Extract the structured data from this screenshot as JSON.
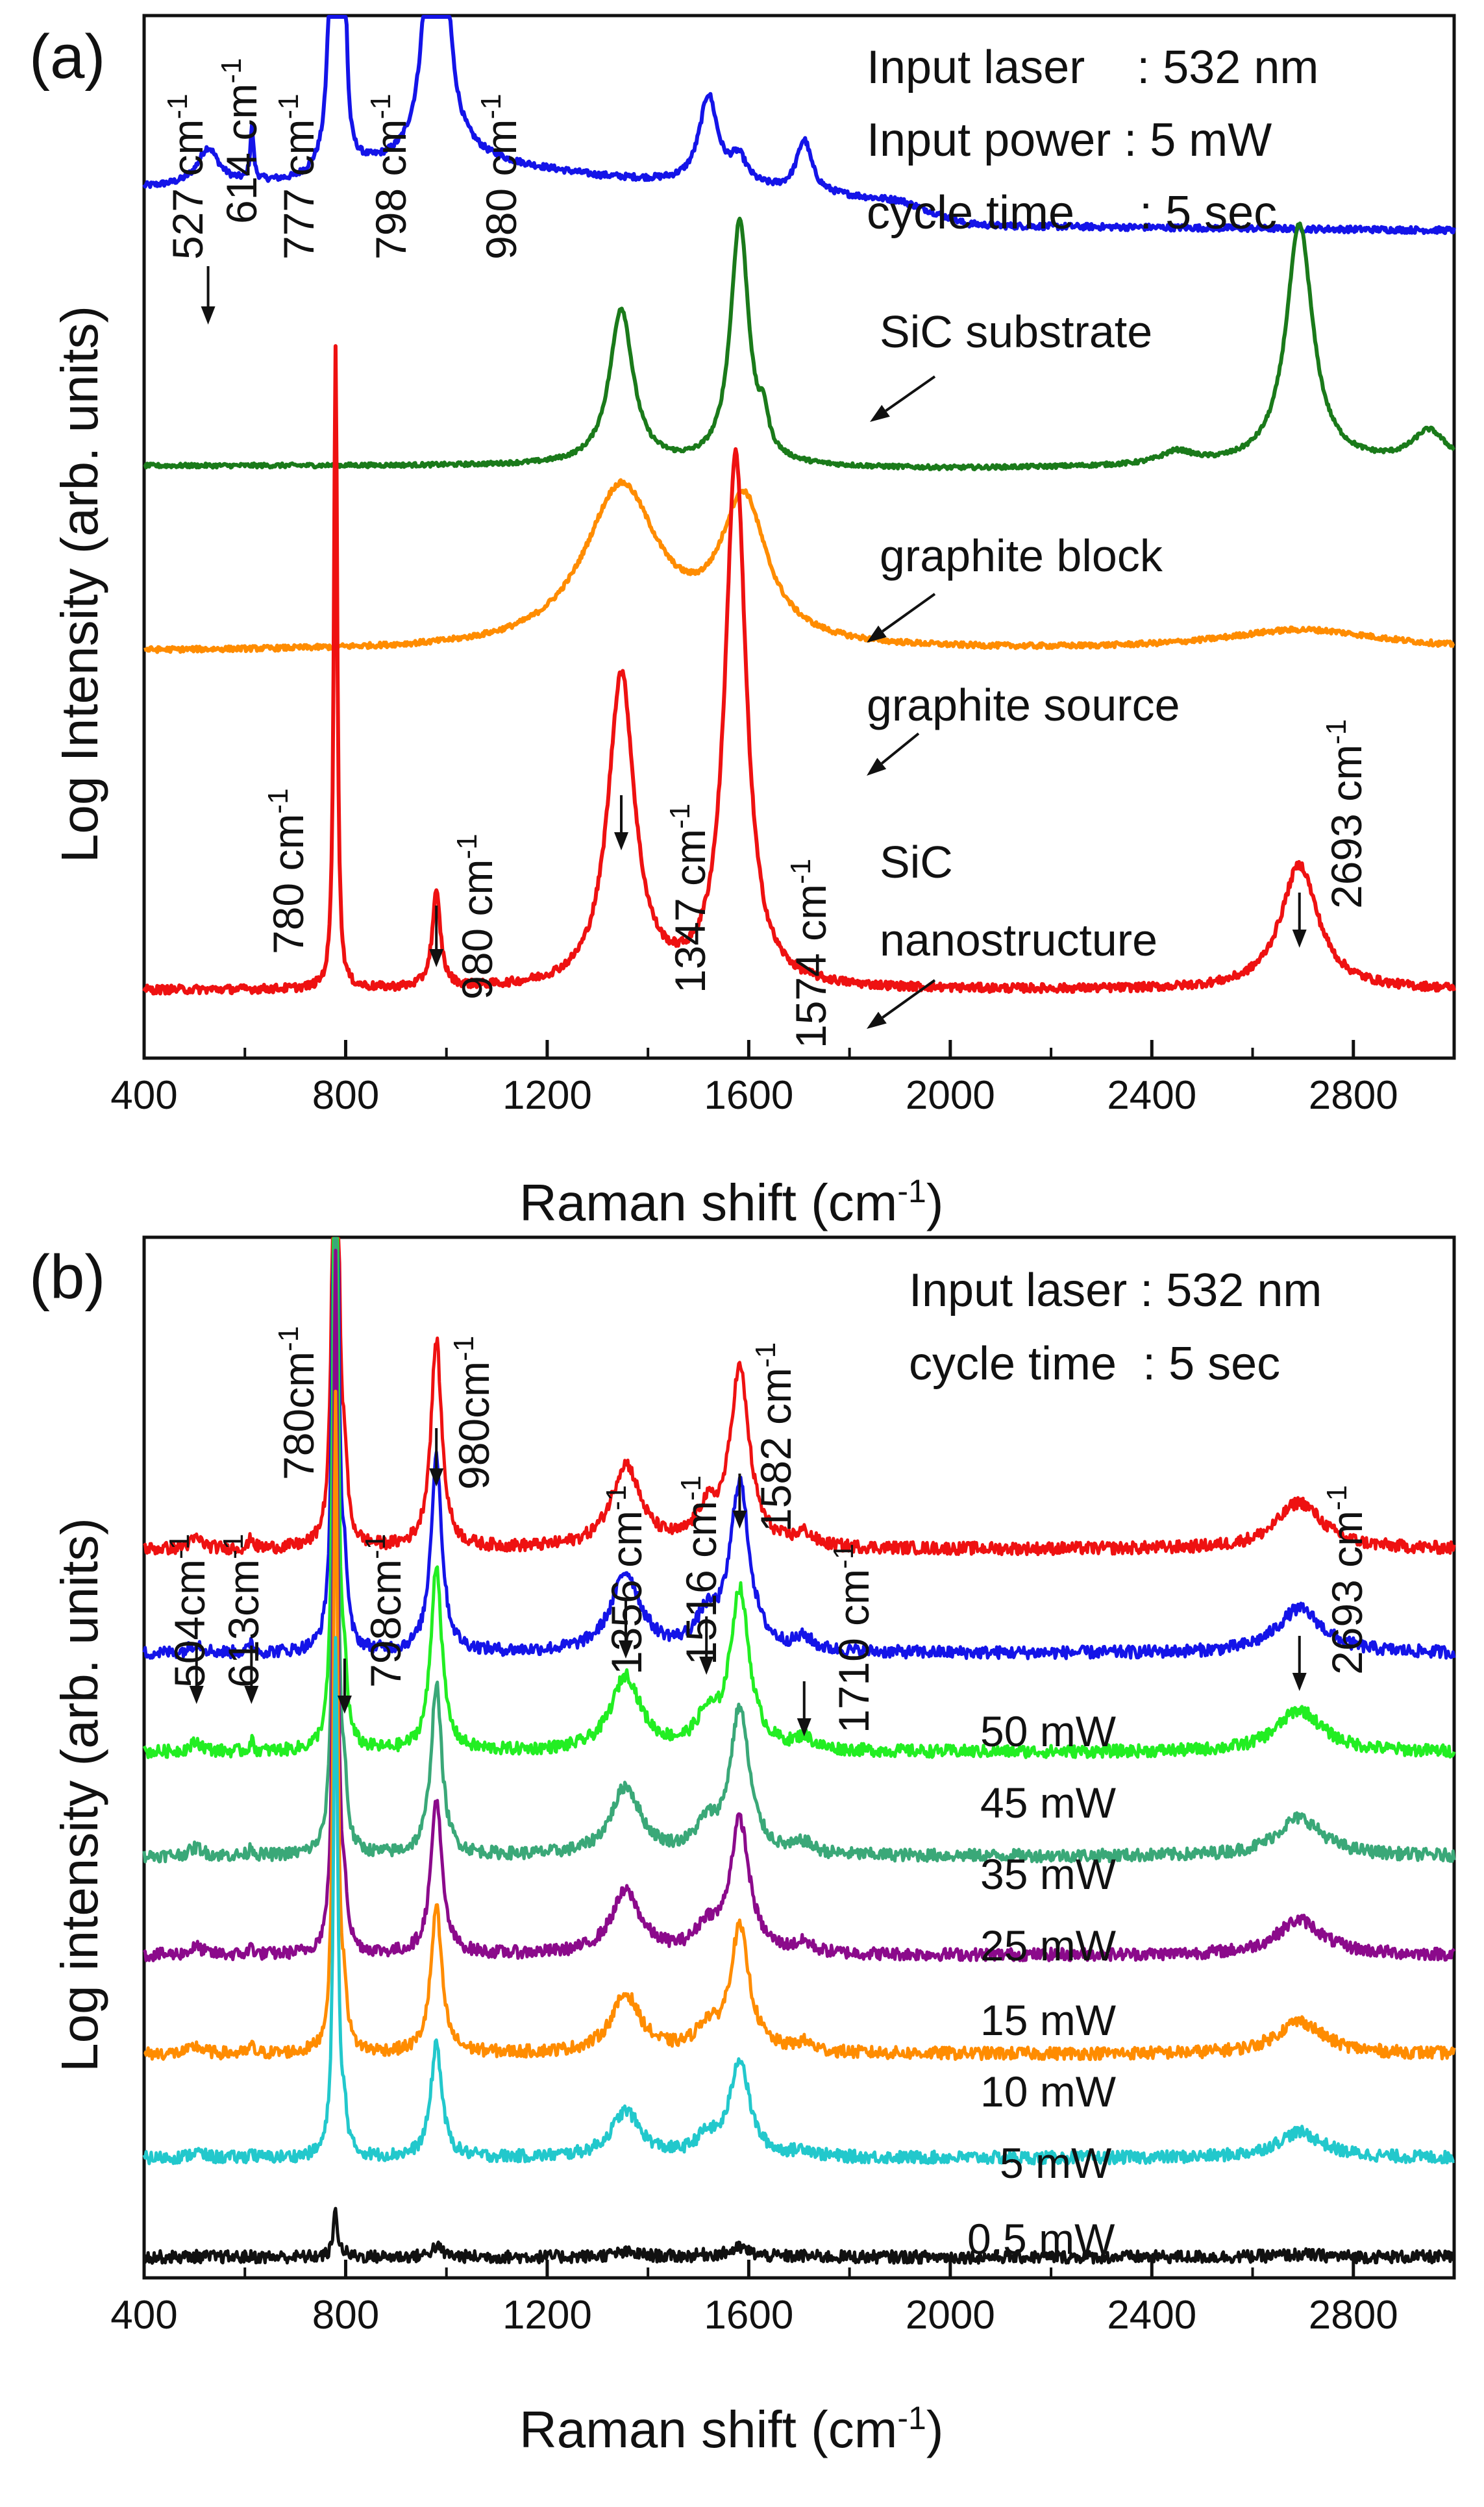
{
  "chart_data": [
    {
      "panel": "(a)",
      "type": "line",
      "xlabel": "Raman shift (cm",
      "xlabel_sup": "-1",
      "xlabel_tail": ")",
      "ylabel": "Log Intensity (arb. units)",
      "xlim": [
        400,
        3000
      ],
      "xticks": [
        400,
        800,
        1200,
        1600,
        2000,
        2400,
        2800
      ],
      "info_lines": [
        "Input laser    : 532 nm",
        "Input power : 5 mW",
        "cycle time     : 5 sec"
      ],
      "series": [
        {
          "name": "SiC substrate",
          "color": "#1414e8",
          "baseline": [
            [
              400,
              0.835
            ],
            [
              700,
              0.84
            ],
            [
              760,
              0.85
            ],
            [
              1050,
              0.86
            ],
            [
              1300,
              0.845
            ],
            [
              1480,
              0.838
            ],
            [
              1900,
              0.822
            ],
            [
              2030,
              0.8
            ],
            [
              2100,
              0.798
            ],
            [
              3000,
              0.794
            ]
          ],
          "peaks": [
            [
              527,
              0.035,
              25
            ],
            [
              614,
              0.05,
              4
            ],
            [
              777,
              0.7,
              6
            ],
            [
              798,
              0.16,
              5
            ],
            [
              980,
              0.55,
              16
            ],
            [
              1520,
              0.085,
              22
            ],
            [
              1580,
              0.025,
              20
            ],
            [
              1710,
              0.05,
              18
            ]
          ]
        },
        {
          "name": "graphite block",
          "color": "#1a7a1a",
          "baseline": [
            [
              400,
              0.568
            ],
            [
              1200,
              0.568
            ],
            [
              2000,
              0.565
            ],
            [
              3000,
              0.57
            ]
          ],
          "peaks": [
            [
              1347,
              0.15,
              28
            ],
            [
              1582,
              0.235,
              22
            ],
            [
              1630,
              0.03,
              10
            ],
            [
              2450,
              0.012,
              40
            ],
            [
              2693,
              0.23,
              32
            ],
            [
              2950,
              0.03,
              40
            ]
          ]
        },
        {
          "name": "graphite source",
          "color": "#ff8c00",
          "baseline": [
            [
              400,
              0.39
            ],
            [
              3000,
              0.39
            ]
          ],
          "peaks": [
            [
              1347,
              0.155,
              90
            ],
            [
              1590,
              0.135,
              55
            ],
            [
              2700,
              0.02,
              200
            ]
          ]
        },
        {
          "name": "SiC nanostructure",
          "color": "#ee1111",
          "baseline": [
            [
              400,
              0.065
            ],
            [
              3000,
              0.065
            ]
          ],
          "peaks": [
            [
              780,
              0.62,
              4
            ],
            [
              980,
              0.09,
              10
            ],
            [
              1347,
              0.3,
              32
            ],
            [
              1574,
              0.51,
              25
            ],
            [
              2693,
              0.12,
              45
            ]
          ]
        }
      ],
      "peak_annotations": [
        "527 cm",
        "614 cm",
        "777 cm",
        "798 cm",
        "980 cm",
        "780 cm",
        "980 cm",
        "1347 cm",
        "1574 cm",
        "2693 cm"
      ],
      "peak_annotation_sup": "-1"
    },
    {
      "panel": "(b)",
      "type": "line",
      "xlabel": "Raman shift (cm",
      "xlabel_sup": "-1",
      "xlabel_tail": ")",
      "ylabel": "Log intensity (arb. units)",
      "xlim": [
        400,
        3000
      ],
      "xticks": [
        400,
        800,
        1200,
        1600,
        2000,
        2400,
        2800
      ],
      "info_lines": [
        "Input laser : 532 nm",
        "cycle time  : 5 sec"
      ],
      "series": [
        {
          "name": "50 mW",
          "color": "#ee1111",
          "offset": 0.7,
          "scale": 1.0
        },
        {
          "name": "45 mW",
          "color": "#1414e8",
          "offset": 0.6,
          "scale": 0.95
        },
        {
          "name": "35 mW",
          "color": "#22ee22",
          "offset": 0.505,
          "scale": 0.9
        },
        {
          "name": "25 mW",
          "color": "#3aa878",
          "offset": 0.405,
          "scale": 0.82
        },
        {
          "name": "15 mW",
          "color": "#8b0a8b",
          "offset": 0.31,
          "scale": 0.75
        },
        {
          "name": "10 mW",
          "color": "#ff8c00",
          "offset": 0.215,
          "scale": 0.7
        },
        {
          "name": "5 mW",
          "color": "#22c8cc",
          "offset": 0.115,
          "scale": 0.55
        },
        {
          "name": "0.5 mW",
          "color": "#111111",
          "offset": 0.02,
          "scale": 0.05
        }
      ],
      "peak_annotations": [
        "504cm",
        "613cm",
        "780cm",
        "798cm",
        "980cm",
        "1356 cm",
        "1516 cm",
        "1582 cm",
        "1710 cm",
        "2693 cm"
      ],
      "peak_annotation_sup": "-1"
    }
  ]
}
